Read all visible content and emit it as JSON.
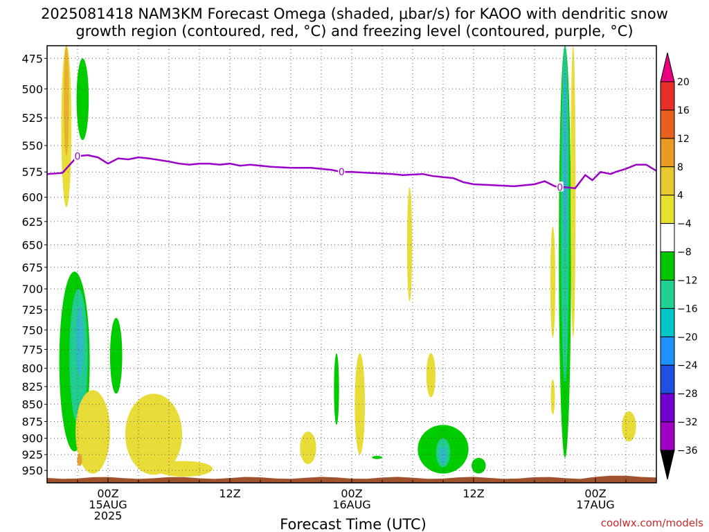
{
  "chart_data": {
    "type": "heatmap",
    "title_line1": "2025081418 NAM3KM Forecast Omega (shaded, μbar/s) for KAOO with dendritic snow",
    "title_line2": "growth region (contoured, red, °C) and freezing level (contoured, purple, °C)",
    "xlabel": "Forecast Time (UTC)",
    "credit": "coolwx.com/models",
    "y_axis": {
      "ticks": [
        475,
        500,
        525,
        550,
        575,
        600,
        625,
        650,
        675,
        700,
        725,
        750,
        775,
        800,
        825,
        850,
        875,
        900,
        925,
        950
      ],
      "range": [
        465,
        970
      ],
      "log_scale": true
    },
    "x_axis": {
      "range_hours": [
        -6,
        54
      ],
      "ticks": [
        {
          "hour": 0,
          "line1": "00Z",
          "line2": "15AUG",
          "line3": "2025"
        },
        {
          "hour": 12,
          "line1": "12Z",
          "line2": "",
          "line3": ""
        },
        {
          "hour": 24,
          "line1": "00Z",
          "line2": "16AUG",
          "line3": ""
        },
        {
          "hour": 36,
          "line1": "12Z",
          "line2": "",
          "line3": ""
        },
        {
          "hour": 48,
          "line1": "00Z",
          "line2": "17AUG",
          "line3": ""
        }
      ]
    },
    "grid": true,
    "colorbar": {
      "labels": [
        "20",
        "16",
        "12",
        "8",
        "4",
        "−4",
        "−8",
        "−12",
        "−16",
        "−20",
        "−24",
        "−28",
        "−32",
        "−36"
      ],
      "colors": [
        "#e8007e",
        "#e8302a",
        "#e8601e",
        "#e89a22",
        "#e8c830",
        "#e8e030",
        "#ffffff",
        "#00c800",
        "#20d090",
        "#00c8c8",
        "#1e90ff",
        "#2050e0",
        "#7000d0",
        "#a000c0",
        "#aaaaaa",
        "#000000"
      ]
    },
    "freezing_level": {
      "color": "#9a00c8",
      "label": "0",
      "label_hours": [
        -3,
        23,
        44.5
      ],
      "points": [
        [
          -6,
          577
        ],
        [
          -4.5,
          576
        ],
        [
          -3,
          560
        ],
        [
          -2,
          559
        ],
        [
          -1,
          561
        ],
        [
          0,
          567
        ],
        [
          1,
          562
        ],
        [
          2,
          563
        ],
        [
          3,
          561
        ],
        [
          4,
          562
        ],
        [
          6,
          565
        ],
        [
          7,
          567
        ],
        [
          8,
          568
        ],
        [
          9,
          567
        ],
        [
          10,
          567
        ],
        [
          11,
          568
        ],
        [
          12,
          567
        ],
        [
          13,
          569
        ],
        [
          14,
          568
        ],
        [
          16,
          570
        ],
        [
          18,
          571
        ],
        [
          20,
          571
        ],
        [
          22,
          573
        ],
        [
          23,
          575
        ],
        [
          24,
          575
        ],
        [
          26,
          576
        ],
        [
          28,
          577
        ],
        [
          29,
          578
        ],
        [
          31,
          577
        ],
        [
          32,
          579
        ],
        [
          33,
          580
        ],
        [
          34,
          581
        ],
        [
          35,
          585
        ],
        [
          36,
          587
        ],
        [
          38,
          588
        ],
        [
          40,
          589
        ],
        [
          42,
          587
        ],
        [
          43,
          584
        ],
        [
          44,
          589
        ],
        [
          44.5,
          590
        ],
        [
          45,
          590
        ],
        [
          46,
          591
        ],
        [
          47,
          578
        ],
        [
          47.7,
          583
        ],
        [
          48.5,
          575
        ],
        [
          49.5,
          577
        ],
        [
          50,
          575
        ],
        [
          51,
          572
        ],
        [
          52,
          568
        ],
        [
          53,
          568
        ],
        [
          54,
          574
        ]
      ]
    },
    "omega_regions": [
      {
        "value": "4 to 8",
        "color": "#e8dc38",
        "center_hour": -4.1,
        "center_p": 520,
        "hour_width": 0.5,
        "p_top": 465,
        "p_bottom": 610
      },
      {
        "value": "8 to 12",
        "color": "#e8b030",
        "center_hour": -4.1,
        "center_p": 500,
        "hour_width": 0.25,
        "p_top": 465,
        "p_bottom": 560
      },
      {
        "value": "-4 to -8",
        "color": "#00cc00",
        "center_hour": -2.5,
        "center_p": 505,
        "hour_width": 0.6,
        "p_top": 475,
        "p_bottom": 545
      },
      {
        "value": "-4 to -8",
        "color": "#00cc00",
        "center_hour": -3.3,
        "center_p": 790,
        "hour_width": 1.5,
        "p_top": 680,
        "p_bottom": 920
      },
      {
        "value": "-8 to -12",
        "color": "#20cc90",
        "center_hour": -2.9,
        "center_p": 780,
        "hour_width": 0.9,
        "p_top": 700,
        "p_bottom": 880
      },
      {
        "value": "-12 to -16",
        "color": "#30b8c8",
        "center_hour": -2.8,
        "center_p": 760,
        "hour_width": 0.35,
        "p_top": 720,
        "p_bottom": 810
      },
      {
        "value": "4 to 8",
        "color": "#e8dc38",
        "center_hour": -1.5,
        "center_p": 900,
        "hour_width": 1.7,
        "p_top": 830,
        "p_bottom": 955
      },
      {
        "value": "8 to 12",
        "color": "#e8a030",
        "center_hour": -2.8,
        "center_p": 933,
        "hour_width": 0.25,
        "p_top": 924,
        "p_bottom": 943
      },
      {
        "value": "-4 to -8",
        "color": "#00cc00",
        "center_hour": 0.8,
        "center_p": 785,
        "hour_width": 0.6,
        "p_top": 735,
        "p_bottom": 835
      },
      {
        "value": "4 to 8",
        "color": "#e8dc38",
        "center_hour": 4.5,
        "center_p": 900,
        "hour_width": 2.8,
        "p_top": 835,
        "p_bottom": 957
      },
      {
        "value": "4 to 8",
        "color": "#e8dc38",
        "center_hour": 7.5,
        "center_p": 950,
        "hour_width": 2.8,
        "p_top": 935,
        "p_bottom": 960
      },
      {
        "value": "-4 to -8",
        "color": "#00cc00",
        "center_hour": 22.5,
        "center_p": 825,
        "hour_width": 0.25,
        "p_top": 780,
        "p_bottom": 880
      },
      {
        "value": "4 to 8",
        "color": "#e8dc38",
        "center_hour": 24.8,
        "center_p": 825,
        "hour_width": 0.5,
        "p_top": 780,
        "p_bottom": 925
      },
      {
        "value": "4 to 8",
        "color": "#e8dc38",
        "center_hour": 19.7,
        "center_p": 915,
        "hour_width": 0.8,
        "p_top": 890,
        "p_bottom": 940
      },
      {
        "value": "-4 to -8",
        "color": "#00cc00",
        "center_hour": 26.5,
        "center_p": 929,
        "hour_width": 0.5,
        "p_top": 927,
        "p_bottom": 932
      },
      {
        "value": "4 to 8",
        "color": "#e8dc38",
        "center_hour": 29.7,
        "center_p": 650,
        "hour_width": 0.25,
        "p_top": 590,
        "p_bottom": 715
      },
      {
        "value": "4 to 8",
        "color": "#e8dc38",
        "center_hour": 31.8,
        "center_p": 810,
        "hour_width": 0.45,
        "p_top": 780,
        "p_bottom": 840
      },
      {
        "value": "-4 to -8",
        "color": "#00cc00",
        "center_hour": 33.0,
        "center_p": 930,
        "hour_width": 2.5,
        "p_top": 880,
        "p_bottom": 955
      },
      {
        "value": "-8 to -12",
        "color": "#20cc90",
        "center_hour": 33.0,
        "center_p": 925,
        "hour_width": 0.7,
        "p_top": 900,
        "p_bottom": 945
      },
      {
        "value": "-12 to -16",
        "color": "#30b8c8",
        "center_hour": 33.0,
        "center_p": 925,
        "hour_width": 0.3,
        "p_top": 912,
        "p_bottom": 940
      },
      {
        "value": "-4 to -8",
        "color": "#00cc00",
        "center_hour": 36.5,
        "center_p": 942,
        "hour_width": 0.7,
        "p_top": 930,
        "p_bottom": 955
      },
      {
        "value": "4 to 8",
        "color": "#e8dc38",
        "center_hour": 43.8,
        "center_p": 680,
        "hour_width": 0.25,
        "p_top": 630,
        "p_bottom": 760
      },
      {
        "value": "4 to 8",
        "color": "#e8dc38",
        "center_hour": 43.8,
        "center_p": 840,
        "hour_width": 0.2,
        "p_top": 815,
        "p_bottom": 865
      },
      {
        "value": "-4 to -8",
        "color": "#00cc00",
        "center_hour": 45.0,
        "center_p": 650,
        "hour_width": 0.6,
        "p_top": 465,
        "p_bottom": 930
      },
      {
        "value": "-8 to -12",
        "color": "#20cc90",
        "center_hour": 45.0,
        "center_p": 600,
        "hour_width": 0.4,
        "p_top": 465,
        "p_bottom": 820
      },
      {
        "value": "-12 to -16",
        "color": "#30b8c8",
        "center_hour": 45.0,
        "center_p": 560,
        "hour_width": 0.22,
        "p_top": 480,
        "p_bottom": 660
      },
      {
        "value": "4 to 8",
        "color": "#e8dc38",
        "center_hour": 45.8,
        "center_p": 560,
        "hour_width": 0.25,
        "p_top": 465,
        "p_bottom": 760
      },
      {
        "value": "4 to 8",
        "color": "#e8dc38",
        "center_hour": 51.3,
        "center_p": 880,
        "hour_width": 0.7,
        "p_top": 860,
        "p_bottom": 905
      }
    ],
    "terrain": {
      "color": "#a0522d",
      "top_p": 962
    }
  }
}
